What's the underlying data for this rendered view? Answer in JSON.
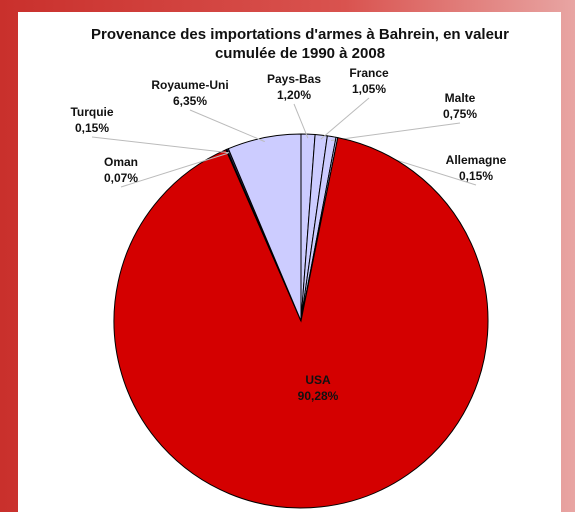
{
  "chart_data": {
    "type": "pie",
    "title": "Provenance des importations d'armes à Bahrein, en valeur cumulée de 1990 à 2008",
    "categories": [
      "Pays-Bas",
      "France",
      "Malte",
      "Allemagne",
      "USA",
      "Oman",
      "Turquie",
      "Royaume-Uni"
    ],
    "values": [
      1.2,
      1.05,
      0.75,
      0.15,
      90.28,
      0.07,
      0.15,
      6.35
    ],
    "value_labels": [
      "1,20%",
      "1,05%",
      "0,75%",
      "0,15%",
      "90,28%",
      "0,07%",
      "0,15%",
      "6,35%"
    ],
    "colors": [
      "#ccccff",
      "#ccccff",
      "#ccccff",
      "#ccccff",
      "#d40000",
      "#333366",
      "#333366",
      "#ccccff"
    ]
  }
}
